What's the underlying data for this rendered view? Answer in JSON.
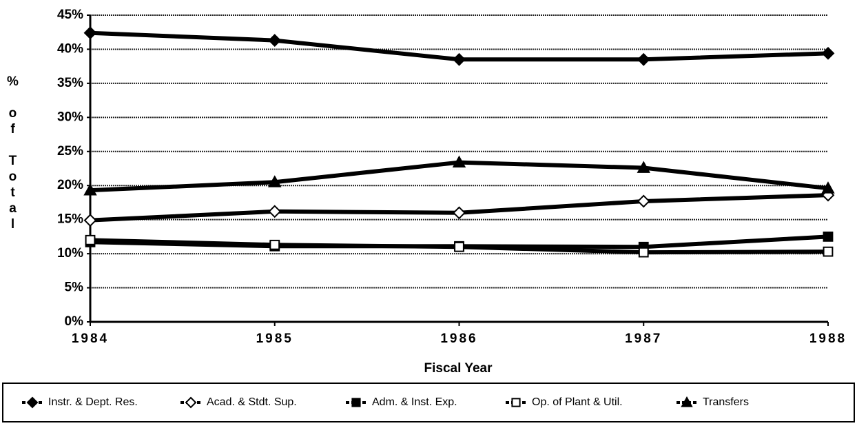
{
  "chart_data": {
    "type": "line",
    "xlabel": "Fiscal Year",
    "ylabel": "% of Total",
    "x": [
      1984,
      1985,
      1986,
      1987,
      1988
    ],
    "xlim": [
      1984,
      1988
    ],
    "xticks": [
      1984,
      1985,
      1986,
      1987,
      1988
    ],
    "ylim": [
      0,
      45
    ],
    "yticks": [
      {
        "value": 0,
        "label": "0%"
      },
      {
        "value": 5,
        "label": "5%"
      },
      {
        "value": 10,
        "label": "10%"
      },
      {
        "value": 15,
        "label": "15%"
      },
      {
        "value": 20,
        "label": "20%"
      },
      {
        "value": 25,
        "label": "25%"
      },
      {
        "value": 30,
        "label": "30%"
      },
      {
        "value": 35,
        "label": "35%"
      },
      {
        "value": 40,
        "label": "40%"
      },
      {
        "value": 45,
        "label": "45%"
      }
    ],
    "grid": true,
    "legend": "bottom",
    "series": [
      {
        "name": "Instr. & Dept. Res.",
        "color": "#000000",
        "marker": "diamond-filled",
        "values": [
          42.4,
          41.3,
          38.5,
          38.5,
          39.4
        ]
      },
      {
        "name": "Acad. & Stdt. Sup.",
        "color": "#000000",
        "marker": "diamond-open",
        "values": [
          14.9,
          16.2,
          16.0,
          17.7,
          18.6
        ]
      },
      {
        "name": "Adm. & Inst. Exp.",
        "color": "#000000",
        "marker": "square-filled",
        "values": [
          11.7,
          11.1,
          11.1,
          11.0,
          12.5
        ]
      },
      {
        "name": "Op. of Plant & Util.",
        "color": "#000000",
        "marker": "square-open",
        "values": [
          12.0,
          11.3,
          11.0,
          10.2,
          10.3
        ]
      },
      {
        "name": "Transfers",
        "color": "#000000",
        "marker": "triangle-filled",
        "values": [
          19.3,
          20.5,
          23.4,
          22.6,
          19.6
        ]
      }
    ]
  }
}
